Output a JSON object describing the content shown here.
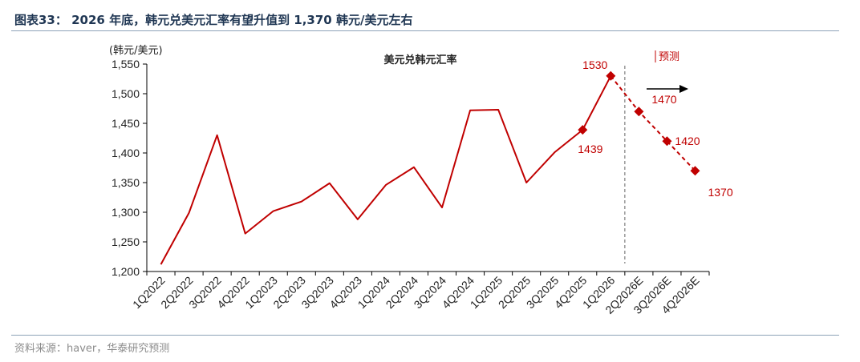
{
  "figure": {
    "title": "图表33： 2026 年底，韩元兑美元汇率有望升值到 1,370 韩元/美元左右",
    "source": "资料来源：haver，华泰研究预测"
  },
  "colors": {
    "series": "#c00000",
    "title": "#1f3653",
    "rule": "#8da3b8",
    "divider": "#7f7f7f"
  },
  "chart_data": {
    "type": "line",
    "title": "美元兑韩元汇率",
    "ylabel": "(韩元/美元)",
    "xlabel": "",
    "ylim": [
      1200,
      1550
    ],
    "y_ticks": [
      "1,200",
      "1,250",
      "1,300",
      "1,350",
      "1,400",
      "1,450",
      "1,500",
      "1,550"
    ],
    "grid": false,
    "legend": "none",
    "categories": [
      "1Q2022",
      "2Q2022",
      "3Q2022",
      "4Q2022",
      "1Q2023",
      "2Q2023",
      "3Q2023",
      "4Q2023",
      "1Q2024",
      "2Q2024",
      "3Q2024",
      "4Q2024",
      "1Q2025",
      "2Q2025",
      "3Q2025",
      "4Q2025",
      "1Q2026",
      "2Q2026E",
      "3Q2026E",
      "4Q2026E"
    ],
    "actual": {
      "x": [
        "1Q2022",
        "1Q2022",
        "2Q2022",
        "3Q2022",
        "4Q2022",
        "4Q2022",
        "1Q2023",
        "2Q2023",
        "3Q2023",
        "4Q2023",
        "1Q2024",
        "2Q2024",
        "3Q2024",
        "4Q2024",
        "1Q2025",
        "2Q2025",
        "3Q2025",
        "4Q2025",
        "1Q2026"
      ],
      "values": [
        1212,
        1212,
        1299,
        1430,
        1264,
        1264,
        1302,
        1318,
        1349,
        1288,
        1346,
        1376,
        1308,
        1472,
        1473,
        1350,
        1401,
        1439,
        1530
      ]
    },
    "forecast": {
      "x": [
        "1Q2026",
        "2Q2026E",
        "3Q2026E",
        "4Q2026E"
      ],
      "values": [
        1530,
        1470,
        1420,
        1370
      ]
    },
    "markers": [
      {
        "x": "4Q2025",
        "value": 1439,
        "label": "1439"
      },
      {
        "x": "1Q2026",
        "value": 1530,
        "label": "1530"
      },
      {
        "x": "2Q2026E",
        "value": 1470,
        "label": "1470"
      },
      {
        "x": "3Q2026E",
        "value": 1420,
        "label": "1420"
      },
      {
        "x": "4Q2026E",
        "value": 1370,
        "label": "1370"
      }
    ],
    "forecast_annotation": "预测",
    "forecast_divider_after": "1Q2026"
  }
}
